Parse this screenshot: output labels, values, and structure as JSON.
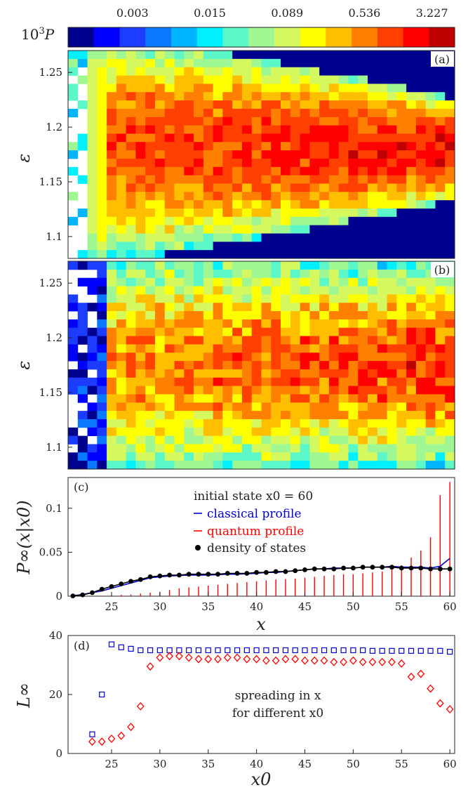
{
  "colorbar": {
    "label_prefix": "10",
    "label_exp": "3",
    "label_var": "P",
    "ticks": [
      "0.003",
      "0.015",
      "0.089",
      "0.536",
      "3.227"
    ],
    "colors": [
      "#00008f",
      "#0000ff",
      "#1c3cff",
      "#0a78ff",
      "#00b4ff",
      "#00f0ff",
      "#5cf7c8",
      "#9ff793",
      "#d4f85e",
      "#ffff00",
      "#ffbf00",
      "#ff8000",
      "#ff4000",
      "#ff0000",
      "#bf0000"
    ]
  },
  "chart_data": [
    {
      "type": "heatmap",
      "panel": "(a)",
      "ylabel": "ε",
      "xlim": [
        20.5,
        60.5
      ],
      "ylim": [
        1.08,
        1.27
      ],
      "yticks": [
        "1.1",
        "1.15",
        "1.2",
        "1.25"
      ],
      "cells": "grid of 40 x-columns by 25 energy rows; values on 15-level log color scale"
    },
    {
      "type": "heatmap",
      "panel": "(b)",
      "ylabel": "ε",
      "xlim": [
        20.5,
        60.5
      ],
      "ylim": [
        1.08,
        1.27
      ],
      "yticks": [
        "1.1",
        "1.15",
        "1.2",
        "1.25"
      ],
      "cells": "grid of 40 x-columns by 25 energy rows; values on 15-level log color scale"
    },
    {
      "type": "line",
      "panel": "(c)",
      "ylabel": "P∞(x|x0)",
      "xlabel": "x",
      "xlim": [
        20.5,
        60.5
      ],
      "ylim": [
        0,
        0.135
      ],
      "xticks": [
        "25",
        "30",
        "35",
        "40",
        "45",
        "50",
        "55",
        "60"
      ],
      "yticks": [
        "0",
        "0.05",
        "0.1"
      ],
      "legend_title": "initial state x0 = 60",
      "series": [
        {
          "name": "classical profile",
          "color": "#0000cc",
          "x": [
            21,
            22,
            23,
            24,
            25,
            26,
            27,
            28,
            29,
            30,
            31,
            32,
            33,
            34,
            35,
            36,
            37,
            38,
            39,
            40,
            41,
            42,
            43,
            44,
            45,
            46,
            47,
            48,
            49,
            50,
            51,
            52,
            53,
            54,
            55,
            56,
            57,
            58,
            59,
            60
          ],
          "values": [
            0.0005,
            0.002,
            0.004,
            0.006,
            0.009,
            0.012,
            0.015,
            0.018,
            0.021,
            0.022,
            0.023,
            0.0235,
            0.024,
            0.024,
            0.024,
            0.0245,
            0.025,
            0.025,
            0.0255,
            0.026,
            0.027,
            0.027,
            0.028,
            0.029,
            0.03,
            0.031,
            0.031,
            0.032,
            0.032,
            0.032,
            0.033,
            0.033,
            0.033,
            0.034,
            0.033,
            0.033,
            0.033,
            0.032,
            0.034,
            0.043
          ]
        },
        {
          "name": "quantum profile",
          "color": "#ff0000",
          "x": [
            21,
            22,
            23,
            24,
            25,
            26,
            27,
            28,
            29,
            30,
            31,
            32,
            33,
            34,
            35,
            36,
            37,
            38,
            39,
            40,
            41,
            42,
            43,
            44,
            45,
            46,
            47,
            48,
            49,
            50,
            51,
            52,
            53,
            54,
            55,
            56,
            57,
            58,
            59,
            60
          ],
          "values": [
            0.0,
            0.0,
            0.0002,
            0.0005,
            0.001,
            0.0015,
            0.002,
            0.003,
            0.004,
            0.005,
            0.007,
            0.009,
            0.01,
            0.011,
            0.012,
            0.013,
            0.014,
            0.015,
            0.016,
            0.017,
            0.018,
            0.019,
            0.0195,
            0.02,
            0.021,
            0.022,
            0.023,
            0.024,
            0.025,
            0.025,
            0.026,
            0.027,
            0.028,
            0.031,
            0.035,
            0.044,
            0.052,
            0.067,
            0.115,
            0.13
          ]
        },
        {
          "name": "density of states",
          "color": "#000000",
          "x": [
            21,
            22,
            23,
            24,
            25,
            26,
            27,
            28,
            29,
            30,
            31,
            32,
            33,
            34,
            35,
            36,
            37,
            38,
            39,
            40,
            41,
            42,
            43,
            44,
            45,
            46,
            47,
            48,
            49,
            50,
            51,
            52,
            53,
            54,
            55,
            56,
            57,
            58,
            59,
            60
          ],
          "values": [
            0.0003,
            0.0015,
            0.004,
            0.008,
            0.011,
            0.014,
            0.017,
            0.019,
            0.022,
            0.023,
            0.024,
            0.024,
            0.025,
            0.025,
            0.025,
            0.025,
            0.026,
            0.026,
            0.026,
            0.027,
            0.027,
            0.028,
            0.028,
            0.029,
            0.03,
            0.031,
            0.031,
            0.031,
            0.032,
            0.032,
            0.033,
            0.033,
            0.033,
            0.033,
            0.032,
            0.032,
            0.032,
            0.031,
            0.031,
            0.031
          ]
        }
      ]
    },
    {
      "type": "scatter",
      "panel": "(d)",
      "ylabel": "L∞",
      "xlabel": "x0",
      "xlim": [
        20.5,
        60.5
      ],
      "ylim": [
        0,
        40
      ],
      "xticks": [
        "25",
        "30",
        "35",
        "40",
        "45",
        "50",
        "55",
        "60"
      ],
      "yticks": [
        "0",
        "20",
        "40"
      ],
      "annotation": [
        "spreading in x",
        "for different x0"
      ],
      "series": [
        {
          "marker": "square",
          "color": "#0000cc",
          "x": [
            23,
            24,
            25,
            26,
            27,
            28,
            29,
            30,
            31,
            32,
            33,
            34,
            35,
            36,
            37,
            38,
            39,
            40,
            41,
            42,
            43,
            44,
            45,
            46,
            47,
            48,
            49,
            50,
            51,
            52,
            53,
            54,
            55,
            56,
            57,
            58,
            59,
            60
          ],
          "values": [
            6.5,
            20,
            37,
            36,
            35.5,
            35,
            35,
            35,
            35,
            35,
            35,
            35,
            35,
            35,
            35,
            35,
            35,
            35,
            35,
            35,
            35,
            35,
            35,
            35,
            35,
            35,
            35,
            35,
            35,
            34.8,
            34.8,
            34.8,
            34.8,
            34.8,
            34.8,
            34.8,
            34.8,
            34.5
          ]
        },
        {
          "marker": "diamond",
          "color": "#ff0000",
          "x": [
            23,
            24,
            25,
            26,
            27,
            28,
            29,
            30,
            31,
            32,
            33,
            34,
            35,
            36,
            37,
            38,
            39,
            40,
            41,
            42,
            43,
            44,
            45,
            46,
            47,
            48,
            49,
            50,
            51,
            52,
            53,
            54,
            55,
            56,
            57,
            58,
            59,
            60
          ],
          "values": [
            4,
            4,
            5,
            6,
            9,
            16,
            29.5,
            32.5,
            33,
            33,
            32.5,
            32,
            32,
            32,
            32.5,
            32.5,
            32,
            32,
            31.5,
            31.5,
            32,
            32,
            31.5,
            31.5,
            31.5,
            31,
            31,
            31.5,
            31,
            31,
            31,
            31,
            30.5,
            26,
            27,
            22,
            17,
            15
          ]
        }
      ]
    }
  ]
}
